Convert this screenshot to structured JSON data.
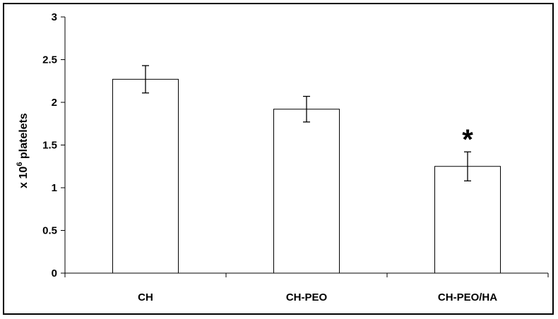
{
  "chart_data": {
    "type": "bar",
    "categories": [
      "CH",
      "CH-PEO",
      "CH-PEO/HA"
    ],
    "series": [
      {
        "values": [
          2.27,
          1.92,
          1.25
        ],
        "errors": [
          0.16,
          0.15,
          0.17
        ]
      }
    ],
    "annotations": [
      {
        "category": "CH-PEO/HA",
        "text": "*"
      }
    ],
    "ylabel": {
      "prefix": "x 10",
      "superscript": "6",
      "suffix": " platelets"
    },
    "xlabel": "",
    "title": "",
    "ylim": [
      0,
      3
    ],
    "yticks": [
      0,
      0.5,
      1,
      1.5,
      2,
      2.5,
      3
    ],
    "ytick_labels": [
      "0",
      "0.5",
      "1",
      "1.5",
      "2",
      "2.5",
      "3"
    ],
    "grid": false,
    "legend": "none",
    "bar_fill": "#ffffff",
    "bar_stroke": "#000000"
  }
}
